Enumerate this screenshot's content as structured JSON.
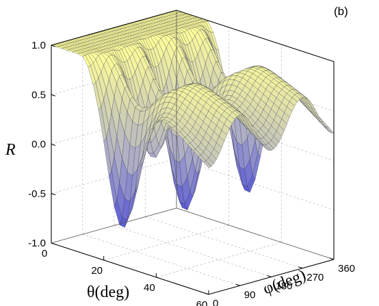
{
  "chart_data": {
    "type": "surface",
    "panel_label": "(b)",
    "title": "",
    "zlabel": "R",
    "xlabel_theta": "θ(deg)",
    "ylabel_phi": "φ(deg)",
    "z_ticks": [
      "1.0",
      "0.5",
      "0.0",
      "-0.5",
      "-1.0"
    ],
    "theta_ticks": [
      "0",
      "20",
      "40",
      "60"
    ],
    "phi_ticks": [
      "0",
      "90",
      "180",
      "270",
      "360"
    ],
    "zlim": [
      -1.0,
      1.0
    ],
    "theta_lim": [
      0,
      60
    ],
    "phi_lim": [
      0,
      360
    ],
    "features": {
      "value_at_theta0": 1.0,
      "peak_max": 1.0,
      "peak_phi": [
        45,
        135,
        225,
        315
      ],
      "min_value": -1.0,
      "min_phi": [
        0,
        180
      ],
      "min_theta": 27,
      "ridge_max_phi": [
        90,
        270
      ]
    },
    "grid": true,
    "colormap": [
      "#2222dd",
      "#a8a8c8",
      "#ffff99"
    ]
  }
}
